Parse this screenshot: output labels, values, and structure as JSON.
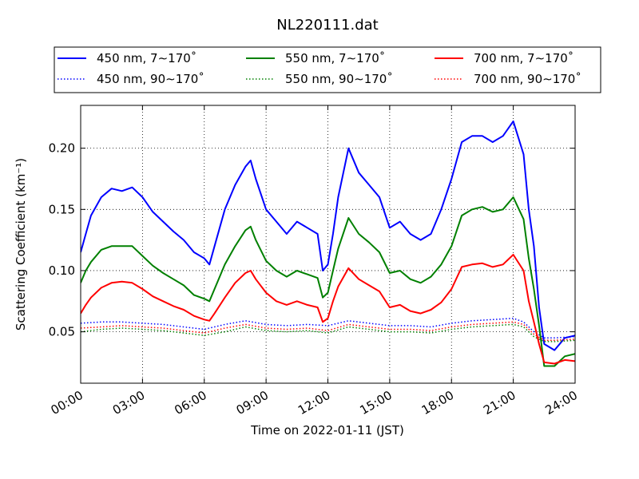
{
  "chart_data": {
    "type": "line",
    "title": "NL220111.dat",
    "xlabel": "Time on 2022-01-11 (JST)",
    "ylabel": "Scattering Coefficient (km⁻¹)",
    "xlim": [
      0,
      24
    ],
    "ylim": [
      0.008,
      0.235
    ],
    "x_ticks": [
      0,
      3,
      6,
      9,
      12,
      15,
      18,
      21,
      24
    ],
    "x_tick_labels": [
      "00:00",
      "03:00",
      "06:00",
      "09:00",
      "12:00",
      "15:00",
      "18:00",
      "21:00",
      "24:00"
    ],
    "y_ticks": [
      0.05,
      0.1,
      0.15,
      0.2
    ],
    "y_tick_labels": [
      "0.05",
      "0.10",
      "0.15",
      "0.20"
    ],
    "grid": true,
    "legend_position": "top, above plot",
    "series": [
      {
        "name": "450 nm, 7∼170˚",
        "color": "#0000ff",
        "style": "solid",
        "x": [
          0,
          0.25,
          0.5,
          1,
          1.5,
          2,
          2.5,
          3,
          3.5,
          4,
          4.5,
          5,
          5.5,
          6,
          6.25,
          6.5,
          7,
          7.5,
          8,
          8.25,
          8.5,
          9,
          9.5,
          10,
          10.5,
          11,
          11.5,
          11.75,
          12,
          12.25,
          12.5,
          13,
          13.5,
          14,
          14.5,
          15,
          15.5,
          16,
          16.5,
          17,
          17.5,
          18,
          18.5,
          19,
          19.5,
          20,
          20.5,
          21,
          21.5,
          21.75,
          22,
          22.25,
          22.5,
          23,
          23.5,
          24
        ],
        "y": [
          0.115,
          0.13,
          0.145,
          0.16,
          0.167,
          0.165,
          0.168,
          0.16,
          0.148,
          0.14,
          0.132,
          0.125,
          0.115,
          0.11,
          0.105,
          0.12,
          0.15,
          0.17,
          0.185,
          0.19,
          0.175,
          0.15,
          0.14,
          0.13,
          0.14,
          0.135,
          0.13,
          0.1,
          0.105,
          0.13,
          0.16,
          0.2,
          0.18,
          0.17,
          0.16,
          0.135,
          0.14,
          0.13,
          0.125,
          0.13,
          0.15,
          0.175,
          0.205,
          0.21,
          0.21,
          0.205,
          0.21,
          0.222,
          0.195,
          0.15,
          0.12,
          0.07,
          0.04,
          0.035,
          0.045,
          0.047
        ]
      },
      {
        "name": "450 nm, 90∼170˚",
        "color": "#0000ff",
        "style": "dotted",
        "x": [
          0,
          1,
          2,
          3,
          4,
          5,
          6,
          7,
          8,
          9,
          10,
          11,
          12,
          13,
          14,
          15,
          16,
          17,
          18,
          19,
          20,
          21,
          21.5,
          22,
          22.5,
          23,
          24
        ],
        "y": [
          0.057,
          0.058,
          0.058,
          0.057,
          0.056,
          0.054,
          0.052,
          0.056,
          0.059,
          0.056,
          0.055,
          0.056,
          0.055,
          0.059,
          0.057,
          0.055,
          0.055,
          0.054,
          0.057,
          0.059,
          0.06,
          0.061,
          0.058,
          0.05,
          0.045,
          0.045,
          0.046
        ]
      },
      {
        "name": "550 nm, 7∼170˚",
        "color": "#008000",
        "style": "solid",
        "x": [
          0,
          0.25,
          0.5,
          1,
          1.5,
          2,
          2.5,
          3,
          3.5,
          4,
          4.5,
          5,
          5.5,
          6,
          6.25,
          6.5,
          7,
          7.5,
          8,
          8.25,
          8.5,
          9,
          9.5,
          10,
          10.5,
          11,
          11.5,
          11.75,
          12,
          12.25,
          12.5,
          13,
          13.5,
          14,
          14.5,
          15,
          15.5,
          16,
          16.5,
          17,
          17.5,
          18,
          18.5,
          19,
          19.5,
          20,
          20.5,
          21,
          21.5,
          21.75,
          22,
          22.25,
          22.5,
          23,
          23.5,
          24
        ],
        "y": [
          0.09,
          0.1,
          0.107,
          0.117,
          0.12,
          0.12,
          0.12,
          0.112,
          0.104,
          0.098,
          0.093,
          0.088,
          0.08,
          0.077,
          0.075,
          0.085,
          0.105,
          0.12,
          0.133,
          0.136,
          0.125,
          0.108,
          0.1,
          0.095,
          0.1,
          0.097,
          0.094,
          0.078,
          0.082,
          0.1,
          0.118,
          0.143,
          0.13,
          0.123,
          0.115,
          0.098,
          0.1,
          0.093,
          0.09,
          0.095,
          0.105,
          0.12,
          0.145,
          0.15,
          0.152,
          0.148,
          0.15,
          0.16,
          0.142,
          0.11,
          0.085,
          0.055,
          0.022,
          0.022,
          0.03,
          0.032
        ]
      },
      {
        "name": "550 nm, 90∼170˚",
        "color": "#008000",
        "style": "dotted",
        "x": [
          0,
          1,
          2,
          3,
          4,
          5,
          6,
          7,
          8,
          9,
          10,
          11,
          12,
          13,
          14,
          15,
          16,
          17,
          18,
          19,
          20,
          21,
          21.5,
          22,
          22.5,
          23,
          24
        ],
        "y": [
          0.05,
          0.052,
          0.053,
          0.052,
          0.051,
          0.049,
          0.047,
          0.05,
          0.054,
          0.051,
          0.05,
          0.051,
          0.049,
          0.054,
          0.052,
          0.05,
          0.05,
          0.049,
          0.052,
          0.054,
          0.055,
          0.056,
          0.054,
          0.046,
          0.042,
          0.042,
          0.043
        ]
      },
      {
        "name": "700 nm, 7∼170˚",
        "color": "#ff0000",
        "style": "solid",
        "x": [
          0,
          0.25,
          0.5,
          1,
          1.5,
          2,
          2.5,
          3,
          3.5,
          4,
          4.5,
          5,
          5.5,
          6,
          6.25,
          6.5,
          7,
          7.5,
          8,
          8.25,
          8.5,
          9,
          9.5,
          10,
          10.5,
          11,
          11.5,
          11.75,
          12,
          12.25,
          12.5,
          13,
          13.5,
          14,
          14.5,
          15,
          15.5,
          16,
          16.5,
          17,
          17.5,
          18,
          18.5,
          19,
          19.5,
          20,
          20.5,
          21,
          21.5,
          21.75,
          22,
          22.25,
          22.5,
          23,
          23.5,
          24
        ],
        "y": [
          0.065,
          0.072,
          0.078,
          0.086,
          0.09,
          0.091,
          0.09,
          0.085,
          0.079,
          0.075,
          0.071,
          0.068,
          0.063,
          0.06,
          0.059,
          0.065,
          0.078,
          0.09,
          0.098,
          0.1,
          0.093,
          0.082,
          0.075,
          0.072,
          0.075,
          0.072,
          0.07,
          0.058,
          0.061,
          0.075,
          0.087,
          0.102,
          0.093,
          0.088,
          0.083,
          0.07,
          0.072,
          0.067,
          0.065,
          0.068,
          0.074,
          0.085,
          0.103,
          0.105,
          0.106,
          0.103,
          0.105,
          0.113,
          0.1,
          0.075,
          0.058,
          0.04,
          0.025,
          0.024,
          0.027,
          0.026
        ]
      },
      {
        "name": "700 nm, 90∼170˚",
        "color": "#ff0000",
        "style": "dotted",
        "x": [
          0,
          1,
          2,
          3,
          4,
          5,
          6,
          7,
          8,
          9,
          10,
          11,
          12,
          13,
          14,
          15,
          16,
          17,
          18,
          19,
          20,
          21,
          21.5,
          22,
          22.5,
          23,
          24
        ],
        "y": [
          0.053,
          0.054,
          0.055,
          0.054,
          0.053,
          0.051,
          0.049,
          0.053,
          0.056,
          0.053,
          0.052,
          0.053,
          0.051,
          0.056,
          0.054,
          0.052,
          0.052,
          0.051,
          0.054,
          0.056,
          0.057,
          0.058,
          0.056,
          0.048,
          0.043,
          0.043,
          0.044
        ]
      }
    ]
  }
}
